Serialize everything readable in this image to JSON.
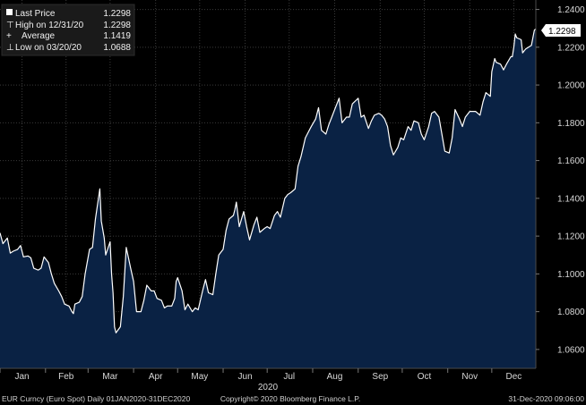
{
  "chart_data": {
    "type": "area",
    "title": "",
    "xlabel": "2020",
    "ylabel": "",
    "ylim": [
      1.05,
      1.245
    ],
    "xlim": [
      "2020-01-01",
      "2020-12-31"
    ],
    "grid": true,
    "legend_position": "top-left",
    "legend": [
      {
        "symbol": "■",
        "label": "Last Price",
        "value": "1.2298"
      },
      {
        "symbol": "⊤",
        "label": "High on 12/31/20",
        "value": "1.2298"
      },
      {
        "symbol": "+",
        "label": "Average",
        "value": "1.1419"
      },
      {
        "symbol": "⊥",
        "label": "Low on 03/20/20",
        "value": "1.0688"
      }
    ],
    "last_value_label": "1.2298",
    "y_ticks": [
      {
        "value": 1.24,
        "label": "1.2400"
      },
      {
        "value": 1.22,
        "label": "1.2200"
      },
      {
        "value": 1.2,
        "label": "1.2000"
      },
      {
        "value": 1.18,
        "label": "1.1800"
      },
      {
        "value": 1.16,
        "label": "1.1600"
      },
      {
        "value": 1.14,
        "label": "1.1400"
      },
      {
        "value": 1.12,
        "label": "1.1200"
      },
      {
        "value": 1.1,
        "label": "1.1000"
      },
      {
        "value": 1.08,
        "label": "1.0800"
      },
      {
        "value": 1.06,
        "label": "1.0600"
      }
    ],
    "x_ticks": [
      {
        "date": "2020-01-16",
        "label": "Jan"
      },
      {
        "date": "2020-02-15",
        "label": "Feb"
      },
      {
        "date": "2020-03-16",
        "label": "Mar"
      },
      {
        "date": "2020-04-16",
        "label": "Apr"
      },
      {
        "date": "2020-05-16",
        "label": "May"
      },
      {
        "date": "2020-06-16",
        "label": "Jun"
      },
      {
        "date": "2020-07-16",
        "label": "Jul"
      },
      {
        "date": "2020-08-16",
        "label": "Aug"
      },
      {
        "date": "2020-09-16",
        "label": "Sep"
      },
      {
        "date": "2020-10-16",
        "label": "Oct"
      },
      {
        "date": "2020-11-16",
        "label": "Nov"
      },
      {
        "date": "2020-12-16",
        "label": "Dec"
      }
    ],
    "series": [
      {
        "name": "Last Price",
        "points": [
          [
            "2020-01-01",
            1.1217
          ],
          [
            "2020-01-03",
            1.116
          ],
          [
            "2020-01-06",
            1.119
          ],
          [
            "2020-01-08",
            1.111
          ],
          [
            "2020-01-10",
            1.112
          ],
          [
            "2020-01-13",
            1.113
          ],
          [
            "2020-01-15",
            1.115
          ],
          [
            "2020-01-17",
            1.109
          ],
          [
            "2020-01-20",
            1.1095
          ],
          [
            "2020-01-22",
            1.1085
          ],
          [
            "2020-01-24",
            1.103
          ],
          [
            "2020-01-27",
            1.102
          ],
          [
            "2020-01-29",
            1.103
          ],
          [
            "2020-01-31",
            1.109
          ],
          [
            "2020-02-03",
            1.106
          ],
          [
            "2020-02-05",
            1.1
          ],
          [
            "2020-02-07",
            1.095
          ],
          [
            "2020-02-10",
            1.091
          ],
          [
            "2020-02-12",
            1.088
          ],
          [
            "2020-02-14",
            1.084
          ],
          [
            "2020-02-17",
            1.083
          ],
          [
            "2020-02-19",
            1.08
          ],
          [
            "2020-02-20",
            1.079
          ],
          [
            "2020-02-21",
            1.084
          ],
          [
            "2020-02-24",
            1.085
          ],
          [
            "2020-02-26",
            1.088
          ],
          [
            "2020-02-28",
            1.1
          ],
          [
            "2020-03-02",
            1.113
          ],
          [
            "2020-03-04",
            1.114
          ],
          [
            "2020-03-06",
            1.129
          ],
          [
            "2020-03-09",
            1.145
          ],
          [
            "2020-03-10",
            1.128
          ],
          [
            "2020-03-12",
            1.119
          ],
          [
            "2020-03-13",
            1.11
          ],
          [
            "2020-03-16",
            1.117
          ],
          [
            "2020-03-17",
            1.1
          ],
          [
            "2020-03-18",
            1.09
          ],
          [
            "2020-03-19",
            1.072
          ],
          [
            "2020-03-20",
            1.0688
          ],
          [
            "2020-03-23",
            1.072
          ],
          [
            "2020-03-25",
            1.088
          ],
          [
            "2020-03-27",
            1.114
          ],
          [
            "2020-03-30",
            1.103
          ],
          [
            "2020-04-01",
            1.096
          ],
          [
            "2020-04-03",
            1.08
          ],
          [
            "2020-04-06",
            1.08
          ],
          [
            "2020-04-08",
            1.086
          ],
          [
            "2020-04-10",
            1.094
          ],
          [
            "2020-04-13",
            1.091
          ],
          [
            "2020-04-15",
            1.091
          ],
          [
            "2020-04-17",
            1.087
          ],
          [
            "2020-04-20",
            1.086
          ],
          [
            "2020-04-22",
            1.082
          ],
          [
            "2020-04-24",
            1.083
          ],
          [
            "2020-04-27",
            1.083
          ],
          [
            "2020-04-29",
            1.087
          ],
          [
            "2020-04-30",
            1.096
          ],
          [
            "2020-05-01",
            1.098
          ],
          [
            "2020-05-04",
            1.091
          ],
          [
            "2020-05-06",
            1.081
          ],
          [
            "2020-05-08",
            1.084
          ],
          [
            "2020-05-11",
            1.08
          ],
          [
            "2020-05-13",
            1.082
          ],
          [
            "2020-05-15",
            1.081
          ],
          [
            "2020-05-18",
            1.091
          ],
          [
            "2020-05-20",
            1.097
          ],
          [
            "2020-05-22",
            1.09
          ],
          [
            "2020-05-25",
            1.089
          ],
          [
            "2020-05-27",
            1.1
          ],
          [
            "2020-05-29",
            1.11
          ],
          [
            "2020-06-01",
            1.113
          ],
          [
            "2020-06-03",
            1.123
          ],
          [
            "2020-06-05",
            1.129
          ],
          [
            "2020-06-08",
            1.131
          ],
          [
            "2020-06-09",
            1.134
          ],
          [
            "2020-06-10",
            1.138
          ],
          [
            "2020-06-12",
            1.125
          ],
          [
            "2020-06-15",
            1.133
          ],
          [
            "2020-06-17",
            1.125
          ],
          [
            "2020-06-19",
            1.118
          ],
          [
            "2020-06-22",
            1.126
          ],
          [
            "2020-06-24",
            1.13
          ],
          [
            "2020-06-26",
            1.122
          ],
          [
            "2020-06-29",
            1.124
          ],
          [
            "2020-07-01",
            1.125
          ],
          [
            "2020-07-03",
            1.124
          ],
          [
            "2020-07-06",
            1.131
          ],
          [
            "2020-07-08",
            1.133
          ],
          [
            "2020-07-10",
            1.13
          ],
          [
            "2020-07-13",
            1.14
          ],
          [
            "2020-07-15",
            1.142
          ],
          [
            "2020-07-17",
            1.143
          ],
          [
            "2020-07-20",
            1.145
          ],
          [
            "2020-07-22",
            1.157
          ],
          [
            "2020-07-24",
            1.162
          ],
          [
            "2020-07-27",
            1.172
          ],
          [
            "2020-07-29",
            1.175
          ],
          [
            "2020-07-31",
            1.178
          ],
          [
            "2020-08-03",
            1.182
          ],
          [
            "2020-08-05",
            1.188
          ],
          [
            "2020-08-07",
            1.176
          ],
          [
            "2020-08-10",
            1.174
          ],
          [
            "2020-08-12",
            1.179
          ],
          [
            "2020-08-14",
            1.183
          ],
          [
            "2020-08-17",
            1.189
          ],
          [
            "2020-08-19",
            1.193
          ],
          [
            "2020-08-21",
            1.18
          ],
          [
            "2020-08-24",
            1.183
          ],
          [
            "2020-08-26",
            1.183
          ],
          [
            "2020-08-28",
            1.19
          ],
          [
            "2020-09-01",
            1.193
          ],
          [
            "2020-09-03",
            1.183
          ],
          [
            "2020-09-05",
            1.184
          ],
          [
            "2020-09-08",
            1.177
          ],
          [
            "2020-09-10",
            1.181
          ],
          [
            "2020-09-12",
            1.184
          ],
          [
            "2020-09-15",
            1.185
          ],
          [
            "2020-09-17",
            1.184
          ],
          [
            "2020-09-19",
            1.182
          ],
          [
            "2020-09-21",
            1.178
          ],
          [
            "2020-09-23",
            1.168
          ],
          [
            "2020-09-25",
            1.163
          ],
          [
            "2020-09-28",
            1.167
          ],
          [
            "2020-09-30",
            1.172
          ],
          [
            "2020-10-02",
            1.171
          ],
          [
            "2020-10-05",
            1.178
          ],
          [
            "2020-10-07",
            1.176
          ],
          [
            "2020-10-09",
            1.181
          ],
          [
            "2020-10-12",
            1.18
          ],
          [
            "2020-10-14",
            1.174
          ],
          [
            "2020-10-16",
            1.171
          ],
          [
            "2020-10-19",
            1.178
          ],
          [
            "2020-10-21",
            1.185
          ],
          [
            "2020-10-23",
            1.186
          ],
          [
            "2020-10-26",
            1.183
          ],
          [
            "2020-10-28",
            1.174
          ],
          [
            "2020-10-30",
            1.165
          ],
          [
            "2020-11-02",
            1.164
          ],
          [
            "2020-11-04",
            1.172
          ],
          [
            "2020-11-06",
            1.187
          ],
          [
            "2020-11-09",
            1.182
          ],
          [
            "2020-11-11",
            1.178
          ],
          [
            "2020-11-13",
            1.183
          ],
          [
            "2020-11-16",
            1.186
          ],
          [
            "2020-11-18",
            1.186
          ],
          [
            "2020-11-20",
            1.186
          ],
          [
            "2020-11-23",
            1.184
          ],
          [
            "2020-11-25",
            1.191
          ],
          [
            "2020-11-27",
            1.196
          ],
          [
            "2020-11-30",
            1.194
          ],
          [
            "2020-12-01",
            1.207
          ],
          [
            "2020-12-03",
            1.214
          ],
          [
            "2020-12-04",
            1.212
          ],
          [
            "2020-12-07",
            1.211
          ],
          [
            "2020-12-09",
            1.208
          ],
          [
            "2020-12-11",
            1.211
          ],
          [
            "2020-12-14",
            1.215
          ],
          [
            "2020-12-15",
            1.215
          ],
          [
            "2020-12-16",
            1.22
          ],
          [
            "2020-12-17",
            1.227
          ],
          [
            "2020-12-18",
            1.225
          ],
          [
            "2020-12-21",
            1.224
          ],
          [
            "2020-12-22",
            1.217
          ],
          [
            "2020-12-23",
            1.218
          ],
          [
            "2020-12-24",
            1.219
          ],
          [
            "2020-12-28",
            1.221
          ],
          [
            "2020-12-29",
            1.225
          ],
          [
            "2020-12-30",
            1.229
          ],
          [
            "2020-12-31",
            1.2298
          ]
        ]
      }
    ]
  },
  "footer": {
    "left": "EUR Curncy (Euro Spot)  Daily 01JAN2020-31DEC2020",
    "center": "Copyright© 2020 Bloomberg Finance L.P.",
    "right": "31-Dec-2020 09:06:00"
  },
  "colors": {
    "background": "#000000",
    "area_fill": "#0a2244",
    "line": "#ffffff",
    "grid": "#3a3a3a",
    "text": "#d8d8d8",
    "last_tag_bg": "#ffffff"
  }
}
